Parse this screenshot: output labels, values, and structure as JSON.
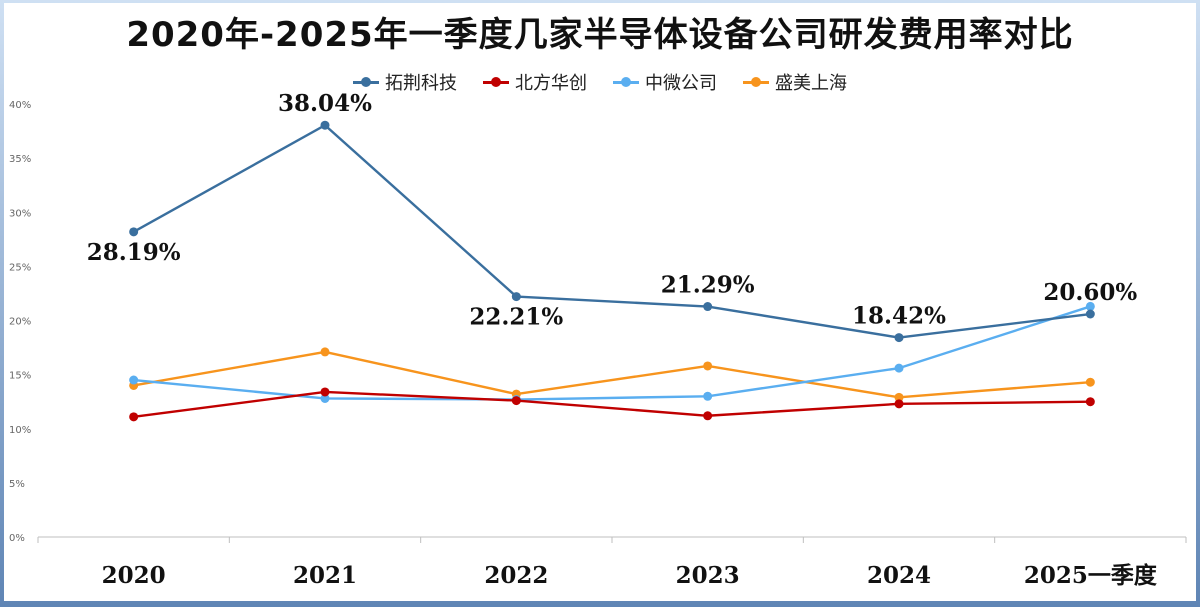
{
  "chart_data": {
    "type": "line",
    "title": "2020年-2025年一季度几家半导体设备公司研发费用率对比",
    "categories": [
      "2020",
      "2021",
      "2022",
      "2023",
      "2024",
      "2025一季度"
    ],
    "ylim": [
      0,
      40
    ],
    "y_ticks": [
      "0%",
      "5%",
      "10%",
      "15%",
      "20%",
      "25%",
      "30%",
      "35%",
      "40%"
    ],
    "grid": false,
    "legend_position": "top",
    "series": [
      {
        "name": "拓荆科技",
        "color": "#3a6f9e",
        "values": [
          28.19,
          38.04,
          22.21,
          21.29,
          18.42,
          20.6
        ],
        "labels": [
          "28.19%",
          "38.04%",
          "22.21%",
          "21.29%",
          "18.42%",
          "20.60%"
        ]
      },
      {
        "name": "北方华创",
        "color": "#c00000",
        "values": [
          11.1,
          13.4,
          12.6,
          11.2,
          12.3,
          12.5
        ]
      },
      {
        "name": "中微公司",
        "color": "#5aaef0",
        "values": [
          14.5,
          12.8,
          12.7,
          13.0,
          15.6,
          21.3
        ]
      },
      {
        "name": "盛美上海",
        "color": "#f7941d",
        "values": [
          14.0,
          17.1,
          13.2,
          15.8,
          12.9,
          14.3
        ]
      }
    ]
  }
}
